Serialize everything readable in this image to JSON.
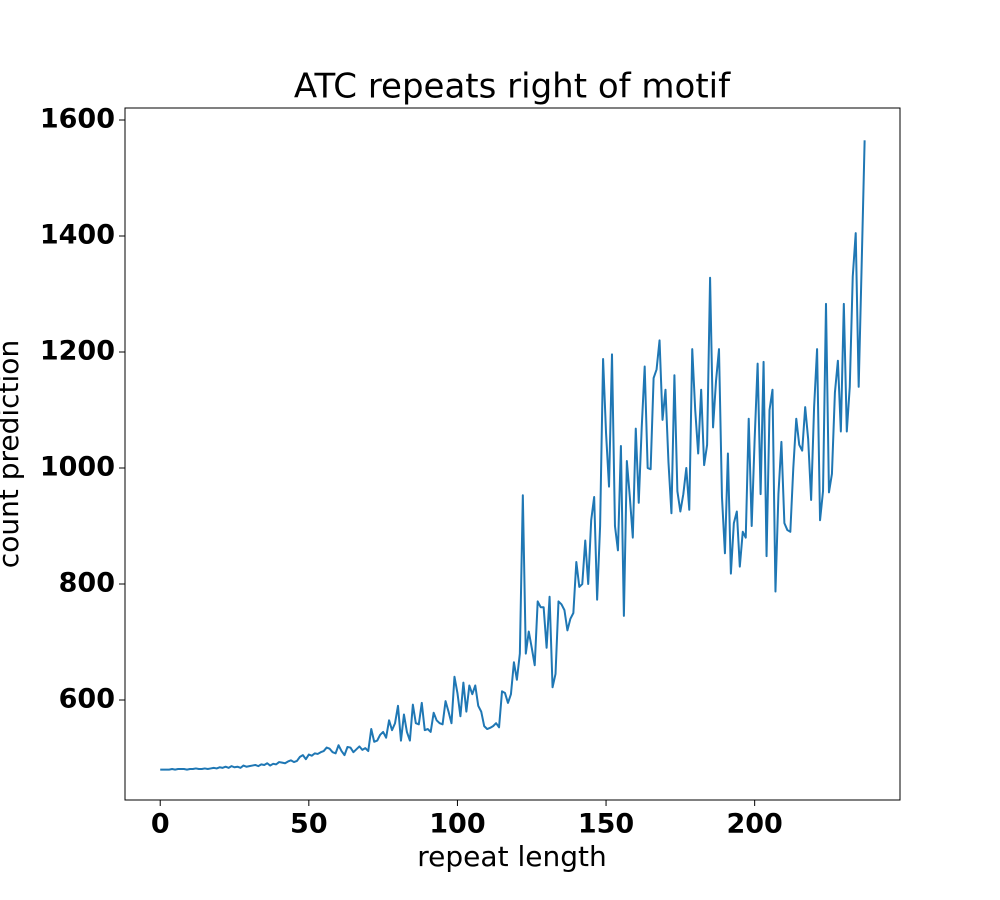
{
  "chart_data": {
    "type": "line",
    "title": "ATC repeats right of motif",
    "xlabel": "repeat length",
    "ylabel": "count prediction",
    "x": [
      0,
      1,
      2,
      3,
      4,
      5,
      6,
      7,
      8,
      9,
      10,
      11,
      12,
      13,
      14,
      15,
      16,
      17,
      18,
      19,
      20,
      21,
      22,
      23,
      24,
      25,
      26,
      27,
      28,
      29,
      30,
      31,
      32,
      33,
      34,
      35,
      36,
      37,
      38,
      39,
      40,
      41,
      42,
      43,
      44,
      45,
      46,
      47,
      48,
      49,
      50,
      51,
      52,
      53,
      54,
      55,
      56,
      57,
      58,
      59,
      60,
      61,
      62,
      63,
      64,
      65,
      66,
      67,
      68,
      69,
      70,
      71,
      72,
      73,
      74,
      75,
      76,
      77,
      78,
      79,
      80,
      81,
      82,
      83,
      84,
      85,
      86,
      87,
      88,
      89,
      90,
      91,
      92,
      93,
      94,
      95,
      96,
      97,
      98,
      99,
      100,
      101,
      102,
      103,
      104,
      105,
      106,
      107,
      108,
      109,
      110,
      111,
      112,
      113,
      114,
      115,
      116,
      117,
      118,
      119,
      120,
      121,
      122,
      123,
      124,
      125,
      126,
      127,
      128,
      129,
      130,
      131,
      132,
      133,
      134,
      135,
      136,
      137,
      138,
      139,
      140,
      141,
      142,
      143,
      144,
      145,
      146,
      147,
      148,
      149,
      150,
      151,
      152,
      153,
      154,
      155,
      156,
      157,
      158,
      159,
      160,
      161,
      162,
      163,
      164,
      165,
      166,
      167,
      168,
      169,
      170,
      171,
      172,
      173,
      174,
      175,
      176,
      177,
      178,
      179,
      180,
      181,
      182,
      183,
      184,
      185,
      186,
      187,
      188,
      189,
      190,
      191,
      192,
      193,
      194,
      195,
      196,
      197,
      198,
      199,
      200,
      201,
      202,
      203,
      204,
      205,
      206,
      207,
      208,
      209,
      210,
      211,
      212,
      213,
      214,
      215,
      216,
      217,
      218,
      219,
      220,
      221,
      222,
      223,
      224,
      225,
      226,
      227,
      228,
      229,
      230,
      231,
      232,
      233,
      234,
      235,
      236,
      237
    ],
    "series": [
      {
        "name": "count prediction",
        "color": "#1f77b4",
        "values": [
          480,
          480,
          480,
          480,
          481,
          480,
          481,
          481,
          481,
          480,
          481,
          481,
          482,
          481,
          481,
          482,
          481,
          482,
          483,
          482,
          484,
          483,
          485,
          483,
          486,
          484,
          485,
          483,
          487,
          485,
          486,
          487,
          488,
          486,
          489,
          488,
          491,
          487,
          490,
          489,
          493,
          492,
          491,
          494,
          496,
          493,
          495,
          502,
          505,
          498,
          506,
          504,
          508,
          507,
          510,
          512,
          518,
          516,
          510,
          508,
          522,
          512,
          505,
          519,
          518,
          510,
          515,
          520,
          514,
          517,
          512,
          550,
          528,
          530,
          540,
          545,
          535,
          565,
          548,
          560,
          590,
          530,
          575,
          545,
          530,
          592,
          560,
          558,
          595,
          548,
          550,
          545,
          578,
          565,
          560,
          558,
          598,
          580,
          560,
          640,
          612,
          572,
          630,
          580,
          625,
          610,
          625,
          590,
          580,
          555,
          550,
          552,
          555,
          560,
          553,
          615,
          612,
          595,
          610,
          665,
          635,
          680,
          953,
          680,
          718,
          690,
          660,
          770,
          760,
          760,
          690,
          778,
          622,
          645,
          770,
          765,
          755,
          720,
          740,
          750,
          838,
          795,
          800,
          875,
          800,
          910,
          950,
          773,
          900,
          1188,
          1060,
          968,
          1196,
          900,
          858,
          1038,
          745,
          1012,
          950,
          880,
          1068,
          940,
          1070,
          1175,
          1000,
          998,
          1155,
          1170,
          1220,
          1083,
          1135,
          1010,
          922,
          1160,
          960,
          925,
          955,
          1000,
          928,
          1205,
          1100,
          1025,
          1135,
          1005,
          1040,
          1328,
          1070,
          1150,
          1205,
          950,
          853,
          1025,
          818,
          905,
          925,
          830,
          890,
          880,
          1085,
          900,
          1050,
          1180,
          955,
          1183,
          848,
          1100,
          1135,
          787,
          955,
          1045,
          905,
          893,
          890,
          1000,
          1085,
          1040,
          1030,
          1105,
          1050,
          945,
          1105,
          1205,
          910,
          960,
          1283,
          958,
          990,
          1130,
          1185,
          1063,
          1283,
          1063,
          1140,
          1330,
          1405,
          1140,
          1350,
          1565
        ]
      }
    ],
    "xlim": [
      -11.85,
      248.9
    ],
    "xticks": [
      0,
      50,
      100,
      150,
      200
    ],
    "ylim": [
      427.6,
      1620.7
    ],
    "yticks": [
      600,
      800,
      1000,
      1200,
      1400,
      1600
    ]
  }
}
